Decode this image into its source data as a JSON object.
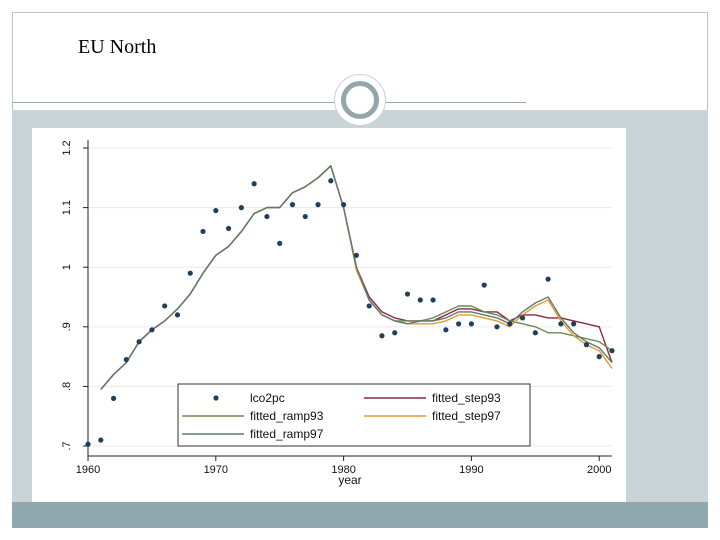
{
  "slide": {
    "title": "EU North"
  },
  "colors": {
    "frame": "#b9c7cc",
    "panel": "#c9d4d8",
    "bottom_bar": "#8fa8ad",
    "ring": "#93a7ab"
  },
  "chart_data": {
    "type": "line",
    "title": "",
    "xlabel": "year",
    "ylabel": "",
    "xlim": [
      1960,
      2001
    ],
    "ylim": [
      0.69,
      1.2
    ],
    "x_ticks": [
      1960,
      1970,
      1980,
      1990,
      2000
    ],
    "x_tick_labels": [
      "1960",
      "1970",
      "1980",
      "1990",
      "2000"
    ],
    "y_ticks": [
      0.7,
      0.8,
      0.9,
      1.0,
      1.1,
      1.2
    ],
    "y_tick_labels": [
      ".7",
      ".8",
      ".9",
      "1",
      "1.1",
      "1.2"
    ],
    "grid": true,
    "legend_position": "bottom",
    "series": [
      {
        "name": "lco2pc",
        "kind": "scatter",
        "color": "#1f3f5a",
        "x": [
          1960,
          1961,
          1962,
          1963,
          1964,
          1965,
          1966,
          1967,
          1968,
          1969,
          1970,
          1971,
          1972,
          1973,
          1974,
          1975,
          1976,
          1977,
          1978,
          1979,
          1980,
          1981,
          1982,
          1983,
          1984,
          1985,
          1986,
          1987,
          1988,
          1989,
          1990,
          1991,
          1992,
          1993,
          1994,
          1995,
          1996,
          1997,
          1998,
          1999,
          2000,
          2001
        ],
        "y": [
          0.703,
          0.71,
          0.78,
          0.845,
          0.875,
          0.895,
          0.935,
          0.92,
          0.99,
          1.06,
          1.095,
          1.065,
          1.1,
          1.14,
          1.085,
          1.04,
          1.105,
          1.085,
          1.105,
          1.145,
          1.105,
          1.02,
          0.935,
          0.885,
          0.89,
          0.955,
          0.945,
          0.945,
          0.895,
          0.905,
          0.905,
          0.97,
          0.9,
          0.905,
          0.915,
          0.89,
          0.98,
          0.905,
          0.905,
          0.87,
          0.85,
          0.86
        ]
      },
      {
        "name": "fitted_step93",
        "kind": "line",
        "color": "#8b2a3a",
        "x": [
          1961,
          1962,
          1963,
          1964,
          1965,
          1966,
          1967,
          1968,
          1969,
          1970,
          1971,
          1972,
          1973,
          1974,
          1975,
          1976,
          1977,
          1978,
          1979,
          1980,
          1981,
          1982,
          1983,
          1984,
          1985,
          1986,
          1987,
          1988,
          1989,
          1990,
          1991,
          1992,
          1993,
          1994,
          1995,
          1996,
          1997,
          1998,
          1999,
          2000,
          2001
        ],
        "y": [
          0.795,
          0.82,
          0.84,
          0.875,
          0.895,
          0.91,
          0.93,
          0.955,
          0.99,
          1.02,
          1.035,
          1.06,
          1.09,
          1.1,
          1.1,
          1.125,
          1.135,
          1.15,
          1.17,
          1.1,
          1.0,
          0.95,
          0.925,
          0.915,
          0.91,
          0.91,
          0.91,
          0.92,
          0.93,
          0.93,
          0.925,
          0.925,
          0.91,
          0.92,
          0.92,
          0.915,
          0.915,
          0.91,
          0.905,
          0.9,
          0.84
        ]
      },
      {
        "name": "fitted_ramp93",
        "kind": "line",
        "color": "#6e8a50",
        "x": [
          1961,
          1962,
          1963,
          1964,
          1965,
          1966,
          1967,
          1968,
          1969,
          1970,
          1971,
          1972,
          1973,
          1974,
          1975,
          1976,
          1977,
          1978,
          1979,
          1980,
          1981,
          1982,
          1983,
          1984,
          1985,
          1986,
          1987,
          1988,
          1989,
          1990,
          1991,
          1992,
          1993,
          1994,
          1995,
          1996,
          1997,
          1998,
          1999,
          2000,
          2001
        ],
        "y": [
          0.795,
          0.82,
          0.84,
          0.875,
          0.895,
          0.91,
          0.93,
          0.955,
          0.99,
          1.02,
          1.035,
          1.06,
          1.09,
          1.1,
          1.1,
          1.125,
          1.135,
          1.15,
          1.17,
          1.1,
          1.0,
          0.945,
          0.92,
          0.91,
          0.91,
          0.91,
          0.915,
          0.925,
          0.935,
          0.935,
          0.925,
          0.92,
          0.91,
          0.905,
          0.9,
          0.89,
          0.89,
          0.885,
          0.88,
          0.875,
          0.86
        ]
      },
      {
        "name": "fitted_step97",
        "kind": "line",
        "color": "#e69a2e",
        "x": [
          1961,
          1962,
          1963,
          1964,
          1965,
          1966,
          1967,
          1968,
          1969,
          1970,
          1971,
          1972,
          1973,
          1974,
          1975,
          1976,
          1977,
          1978,
          1979,
          1980,
          1981,
          1982,
          1983,
          1984,
          1985,
          1986,
          1987,
          1988,
          1989,
          1990,
          1991,
          1992,
          1993,
          1994,
          1995,
          1996,
          1997,
          1998,
          1999,
          2000,
          2001
        ],
        "y": [
          0.795,
          0.82,
          0.84,
          0.875,
          0.895,
          0.91,
          0.93,
          0.955,
          0.99,
          1.02,
          1.035,
          1.06,
          1.09,
          1.1,
          1.1,
          1.125,
          1.135,
          1.15,
          1.17,
          1.1,
          0.995,
          0.945,
          0.92,
          0.91,
          0.905,
          0.905,
          0.905,
          0.91,
          0.92,
          0.92,
          0.915,
          0.91,
          0.9,
          0.92,
          0.935,
          0.945,
          0.91,
          0.885,
          0.87,
          0.86,
          0.83
        ]
      },
      {
        "name": "fitted_ramp97",
        "kind": "line",
        "color": "#5c7a74",
        "x": [
          1961,
          1962,
          1963,
          1964,
          1965,
          1966,
          1967,
          1968,
          1969,
          1970,
          1971,
          1972,
          1973,
          1974,
          1975,
          1976,
          1977,
          1978,
          1979,
          1980,
          1981,
          1982,
          1983,
          1984,
          1985,
          1986,
          1987,
          1988,
          1989,
          1990,
          1991,
          1992,
          1993,
          1994,
          1995,
          1996,
          1997,
          1998,
          1999,
          2000,
          2001
        ],
        "y": [
          0.795,
          0.82,
          0.84,
          0.875,
          0.895,
          0.91,
          0.93,
          0.955,
          0.99,
          1.02,
          1.035,
          1.06,
          1.09,
          1.1,
          1.1,
          1.125,
          1.135,
          1.15,
          1.17,
          1.1,
          1.0,
          0.945,
          0.92,
          0.91,
          0.905,
          0.91,
          0.91,
          0.915,
          0.925,
          0.925,
          0.92,
          0.915,
          0.905,
          0.925,
          0.94,
          0.95,
          0.915,
          0.89,
          0.875,
          0.865,
          0.84
        ]
      }
    ],
    "legend": [
      {
        "label": "lco2pc",
        "symbol": "dot",
        "color": "#1f3f5a",
        "col": 0,
        "row": 0
      },
      {
        "label": "fitted_step93",
        "symbol": "line",
        "color": "#8b2a3a",
        "col": 1,
        "row": 0
      },
      {
        "label": "fitted_ramp93",
        "symbol": "line",
        "color": "#6e8a50",
        "col": 0,
        "row": 1
      },
      {
        "label": "fitted_step97",
        "symbol": "line",
        "color": "#e69a2e",
        "col": 1,
        "row": 1
      },
      {
        "label": "fitted_ramp97",
        "symbol": "line",
        "color": "#5c7a74",
        "col": 0,
        "row": 2
      }
    ]
  }
}
